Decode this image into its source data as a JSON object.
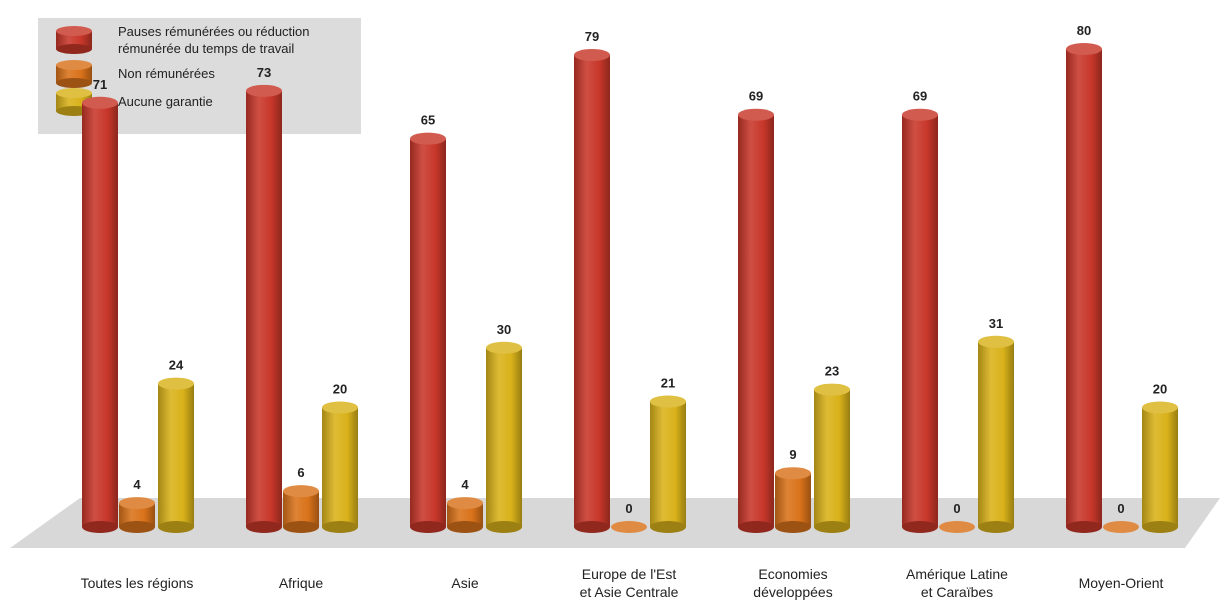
{
  "chart_data": {
    "type": "bar",
    "categories": [
      [
        "Toutes les régions"
      ],
      [
        "Afrique"
      ],
      [
        "Asie"
      ],
      [
        "Europe de l'Est",
        "et Asie Centrale"
      ],
      [
        "Economies",
        "développées"
      ],
      [
        "Amérique Latine",
        "et Caraïbes"
      ],
      [
        "Moyen-Orient"
      ]
    ],
    "series": [
      {
        "name": [
          "Pauses rémunérées ou réduction",
          "rémunérée du temps de travail"
        ],
        "color": "#c8372a",
        "values": [
          71,
          73,
          65,
          79,
          69,
          69,
          80
        ]
      },
      {
        "name": [
          "Non rémunérées"
        ],
        "color": "#d9721a",
        "values": [
          4,
          6,
          4,
          0,
          9,
          0,
          0
        ]
      },
      {
        "name": [
          "Aucune garantie"
        ],
        "color": "#d9b21a",
        "values": [
          24,
          20,
          30,
          21,
          23,
          31,
          20
        ]
      }
    ],
    "title": "",
    "xlabel": "",
    "ylabel": "",
    "ylim": [
      0,
      80
    ],
    "grid": false,
    "legend": "top-left",
    "style": "3d-cylinder",
    "colors": {
      "floor": "#d8d8d8",
      "legend_bg": "#dcdcdc"
    }
  }
}
